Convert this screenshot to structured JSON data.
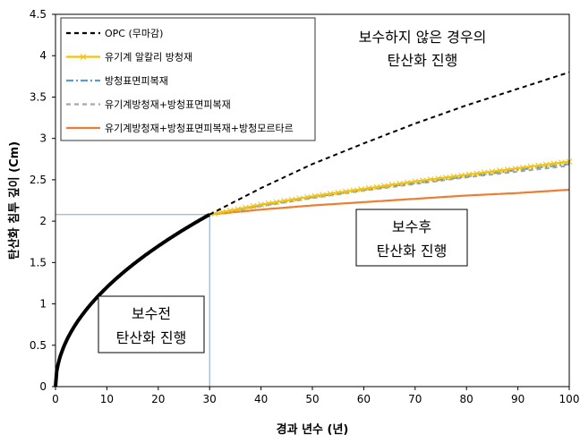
{
  "chart_data": {
    "type": "line",
    "xlabel": "경과 년수 (년)",
    "ylabel": "탄산화 침투 깊이 (Cm)",
    "xlim": [
      0,
      100
    ],
    "ylim": [
      0,
      4.5
    ],
    "xticks": [
      0,
      10,
      20,
      30,
      40,
      50,
      60,
      70,
      80,
      90,
      100
    ],
    "yticks": [
      0,
      0.5,
      1,
      1.5,
      2,
      2.5,
      3,
      3.5,
      4,
      4.5
    ],
    "grid": false,
    "legend_position": "top-left",
    "pre_repair": {
      "x": [
        0,
        1,
        2,
        4,
        6,
        8,
        10,
        12,
        15,
        18,
        21,
        24,
        27,
        30
      ],
      "y": [
        0,
        0.38,
        0.54,
        0.76,
        0.93,
        1.07,
        1.2,
        1.31,
        1.47,
        1.61,
        1.74,
        1.86,
        1.97,
        2.08
      ]
    },
    "series": [
      {
        "name": "OPC (무마감)",
        "color": "#000000",
        "dash": "dash",
        "x": [
          30,
          40,
          50,
          60,
          70,
          80,
          90,
          100
        ],
        "y": [
          2.08,
          2.4,
          2.69,
          2.94,
          3.18,
          3.4,
          3.6,
          3.8
        ]
      },
      {
        "name": "유기계 알칼리 방청재",
        "color": "#f2c20f",
        "dash": "solid",
        "marker": "x",
        "x": [
          30,
          40,
          50,
          60,
          70,
          80,
          90,
          100
        ],
        "y": [
          2.08,
          2.2,
          2.3,
          2.39,
          2.48,
          2.56,
          2.64,
          2.72
        ]
      },
      {
        "name": "방청표면피복재",
        "color": "#5b9bd5",
        "dash": "dashdot",
        "x": [
          30,
          40,
          50,
          60,
          70,
          80,
          90,
          100
        ],
        "y": [
          2.08,
          2.19,
          2.29,
          2.38,
          2.46,
          2.54,
          2.62,
          2.69
        ]
      },
      {
        "name": "유기계방청재+방청표면피복재",
        "color": "#a6a6a6",
        "dash": "dash",
        "x": [
          30,
          40,
          50,
          60,
          70,
          80,
          90,
          100
        ],
        "y": [
          2.08,
          2.18,
          2.28,
          2.37,
          2.45,
          2.53,
          2.6,
          2.67
        ]
      },
      {
        "name": "유기계방청재+방청표면피복재+방청모르타르",
        "color": "#ed7d31",
        "dash": "solid",
        "x": [
          30,
          40,
          50,
          60,
          70,
          80,
          90,
          100
        ],
        "y": [
          2.08,
          2.14,
          2.19,
          2.23,
          2.27,
          2.31,
          2.34,
          2.38
        ]
      }
    ],
    "annotations": {
      "pre_repair": [
        "보수전",
        "탄산화 진행"
      ],
      "post_repair": [
        "보수후",
        "탄산화 진행"
      ],
      "no_repair": [
        "보수하지 않은 경우의",
        "탄산화 진행"
      ]
    }
  }
}
